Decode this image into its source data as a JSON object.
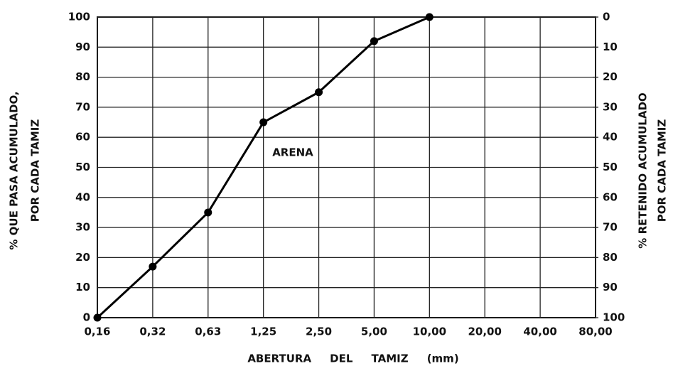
{
  "chart_data": {
    "type": "line",
    "categories": [
      "0,16",
      "0,32",
      "0,63",
      "1,25",
      "2,50",
      "5,00",
      "10,00",
      "20,00",
      "40,00",
      "80,00"
    ],
    "series": [
      {
        "name": null,
        "color": "#000000",
        "values": [
          0,
          17,
          35,
          65,
          75,
          92,
          100,
          null,
          null,
          null
        ]
      }
    ],
    "ylim": [
      0,
      100
    ],
    "yticks": [
      0,
      10,
      20,
      30,
      40,
      50,
      60,
      70,
      80,
      90,
      100
    ],
    "y2lim": [
      100,
      0
    ],
    "y2ticks": [
      0,
      10,
      20,
      30,
      40,
      50,
      60,
      70,
      80,
      90,
      100
    ],
    "ylabel": [
      "% QUE PASA ACUMULADO,",
      "POR CADA TAMIZ"
    ],
    "y2label": [
      "% RETENIDO ACUMULADO",
      "POR CADA TAMIZ"
    ],
    "xlabel": "ABERTURA     DEL     TAMIZ     (mm)",
    "annotation": "ARENA",
    "grid": true
  }
}
